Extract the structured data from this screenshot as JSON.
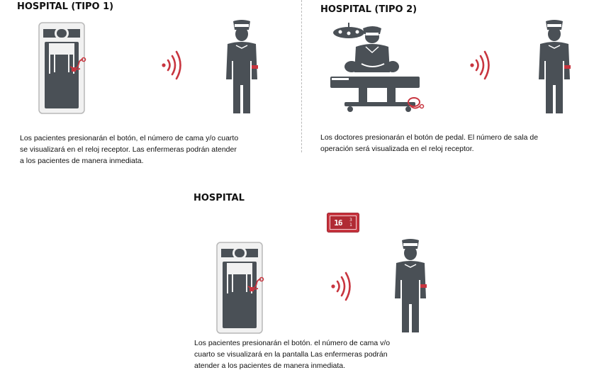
{
  "panels": [
    {
      "title": "HOSPITAL (TIPO 1)",
      "description": "Los pacientes presionarán el botón, el número de cama y/o cuarto\nse visualizará en el reloj receptor.   Las enfermeras podrán atender\na los pacientes de manera  inmediata."
    },
    {
      "title": "HOSPITAL (TIPO 2)",
      "description": "Los doctores presionarán el botón de pedal. El número de sala de\noperación será visualizada en el reloj receptor."
    },
    {
      "title": "HOSPITAL",
      "description": "Los pacientes presionarán el botón. el número de cama v/o\ncuarto se visualizará en la pantalla  Las enfermeras podrán\natender a los pacientes de manera  inmediata.",
      "display": {
        "main": "16",
        "top": "3",
        "bottom": "1"
      }
    }
  ],
  "colors": {
    "icon": "#4a5056",
    "accent": "#c8353f"
  }
}
